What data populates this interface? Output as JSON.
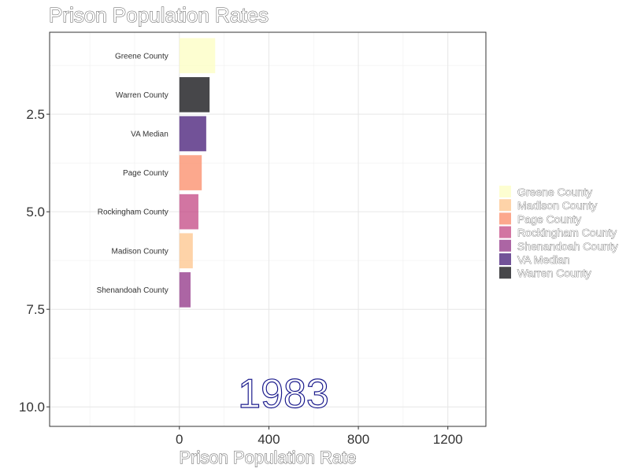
{
  "chart_data": {
    "type": "bar",
    "orientation": "horizontal",
    "title": "Prison Population Rates",
    "xlabel": "Prison Population Rate",
    "ylabel": "",
    "frame_label": "1983",
    "categories": [
      "Greene County",
      "Warren County",
      "VA Median",
      "Page County",
      "Rockingham County",
      "Madison County",
      "Shenandoah County"
    ],
    "values": [
      160,
      135,
      120,
      100,
      85,
      60,
      50
    ],
    "rank": [
      1,
      2,
      3,
      4,
      5,
      6,
      7
    ],
    "xlim": [
      -580,
      1370
    ],
    "ylim": [
      10.5,
      0.4
    ],
    "x_ticks": [
      "0",
      "400",
      "800",
      "1200"
    ],
    "y_ticks": [
      "2.5",
      "5.0",
      "7.5",
      "10.0"
    ],
    "legend_position": "right",
    "legend": [
      {
        "name": "Greene County",
        "color": "#FCFDBF"
      },
      {
        "name": "Madison County",
        "color": "#FEC287"
      },
      {
        "name": "Page County",
        "color": "#FB8761"
      },
      {
        "name": "Rockingham County",
        "color": "#C0407E"
      },
      {
        "name": "Shenandoah County",
        "color": "#8C2981"
      },
      {
        "name": "VA Median",
        "color": "#3B0F70"
      },
      {
        "name": "Warren County",
        "color": "#000004"
      }
    ],
    "grid": true
  }
}
